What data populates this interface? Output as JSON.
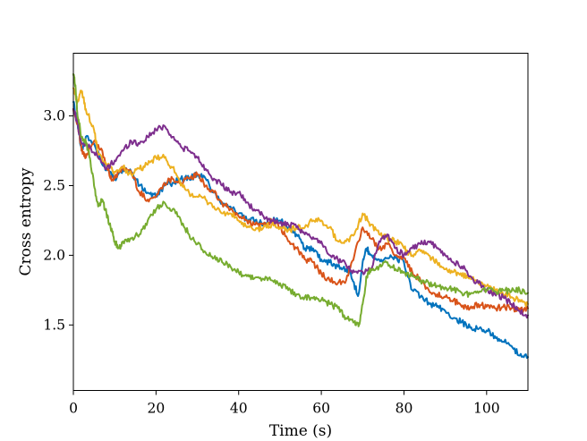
{
  "chart_data": {
    "type": "line",
    "title": "",
    "xlabel": "Time (s)",
    "ylabel": "Cross entropy",
    "xlim": [
      0,
      110
    ],
    "ylim": [
      1.03,
      3.45
    ],
    "xticks": [
      0,
      20,
      40,
      60,
      80,
      100
    ],
    "yticks": [
      1.5,
      2.0,
      2.5,
      3.0
    ],
    "xtick_labels": [
      "0",
      "20",
      "40",
      "60",
      "80",
      "100"
    ],
    "ytick_labels": [
      "1.5",
      "2.0",
      "2.5",
      "3.0"
    ],
    "grid": false,
    "legend": "none",
    "series": [
      {
        "color": "#0072BD",
        "points": [
          [
            0,
            3.1
          ],
          [
            1,
            2.95
          ],
          [
            2,
            2.75
          ],
          [
            3,
            2.85
          ],
          [
            5,
            2.8
          ],
          [
            7,
            2.65
          ],
          [
            9,
            2.6
          ],
          [
            10,
            2.55
          ],
          [
            12,
            2.62
          ],
          [
            14,
            2.6
          ],
          [
            16,
            2.5
          ],
          [
            18,
            2.45
          ],
          [
            20,
            2.42
          ],
          [
            22,
            2.5
          ],
          [
            24,
            2.52
          ],
          [
            26,
            2.55
          ],
          [
            28,
            2.55
          ],
          [
            30,
            2.58
          ],
          [
            32,
            2.55
          ],
          [
            34,
            2.45
          ],
          [
            36,
            2.38
          ],
          [
            38,
            2.35
          ],
          [
            40,
            2.3
          ],
          [
            42,
            2.25
          ],
          [
            44,
            2.25
          ],
          [
            46,
            2.23
          ],
          [
            48,
            2.25
          ],
          [
            50,
            2.25
          ],
          [
            52,
            2.2
          ],
          [
            54,
            2.15
          ],
          [
            56,
            2.05
          ],
          [
            58,
            2.05
          ],
          [
            60,
            1.97
          ],
          [
            62,
            1.95
          ],
          [
            64,
            1.92
          ],
          [
            66,
            1.9
          ],
          [
            67,
            1.88
          ],
          [
            68,
            1.78
          ],
          [
            69,
            1.72
          ],
          [
            70,
            1.95
          ],
          [
            71,
            2.05
          ],
          [
            72,
            2.0
          ],
          [
            74,
            1.97
          ],
          [
            76,
            1.98
          ],
          [
            78,
            1.98
          ],
          [
            80,
            1.95
          ],
          [
            82,
            1.75
          ],
          [
            84,
            1.7
          ],
          [
            86,
            1.66
          ],
          [
            88,
            1.63
          ],
          [
            90,
            1.6
          ],
          [
            92,
            1.55
          ],
          [
            94,
            1.52
          ],
          [
            96,
            1.48
          ],
          [
            98,
            1.47
          ],
          [
            100,
            1.46
          ],
          [
            102,
            1.42
          ],
          [
            104,
            1.38
          ],
          [
            106,
            1.35
          ],
          [
            108,
            1.28
          ],
          [
            110,
            1.27
          ]
        ]
      },
      {
        "color": "#D95319",
        "points": [
          [
            0,
            3.05
          ],
          [
            1,
            2.95
          ],
          [
            2,
            2.75
          ],
          [
            3,
            2.7
          ],
          [
            5,
            2.82
          ],
          [
            7,
            2.75
          ],
          [
            9,
            2.55
          ],
          [
            10,
            2.55
          ],
          [
            12,
            2.63
          ],
          [
            14,
            2.6
          ],
          [
            16,
            2.45
          ],
          [
            18,
            2.4
          ],
          [
            20,
            2.42
          ],
          [
            22,
            2.52
          ],
          [
            24,
            2.55
          ],
          [
            26,
            2.52
          ],
          [
            28,
            2.55
          ],
          [
            30,
            2.58
          ],
          [
            32,
            2.5
          ],
          [
            34,
            2.45
          ],
          [
            36,
            2.37
          ],
          [
            38,
            2.33
          ],
          [
            40,
            2.28
          ],
          [
            42,
            2.25
          ],
          [
            44,
            2.22
          ],
          [
            46,
            2.22
          ],
          [
            48,
            2.25
          ],
          [
            50,
            2.2
          ],
          [
            52,
            2.1
          ],
          [
            54,
            2.05
          ],
          [
            56,
            1.97
          ],
          [
            58,
            1.95
          ],
          [
            60,
            1.87
          ],
          [
            62,
            1.82
          ],
          [
            64,
            1.8
          ],
          [
            66,
            1.82
          ],
          [
            68,
            2.0
          ],
          [
            70,
            2.2
          ],
          [
            72,
            2.12
          ],
          [
            74,
            2.05
          ],
          [
            76,
            2.08
          ],
          [
            78,
            2.0
          ],
          [
            80,
            1.98
          ],
          [
            82,
            1.88
          ],
          [
            84,
            1.82
          ],
          [
            86,
            1.75
          ],
          [
            88,
            1.72
          ],
          [
            90,
            1.7
          ],
          [
            92,
            1.68
          ],
          [
            94,
            1.63
          ],
          [
            96,
            1.62
          ],
          [
            98,
            1.65
          ],
          [
            100,
            1.63
          ],
          [
            102,
            1.62
          ],
          [
            104,
            1.63
          ],
          [
            106,
            1.62
          ],
          [
            108,
            1.6
          ],
          [
            110,
            1.62
          ]
        ]
      },
      {
        "color": "#EDB120",
        "points": [
          [
            0,
            3.2
          ],
          [
            1,
            3.1
          ],
          [
            2,
            3.18
          ],
          [
            3,
            3.05
          ],
          [
            5,
            2.9
          ],
          [
            6,
            2.72
          ],
          [
            8,
            2.65
          ],
          [
            10,
            2.6
          ],
          [
            12,
            2.63
          ],
          [
            14,
            2.58
          ],
          [
            16,
            2.62
          ],
          [
            18,
            2.65
          ],
          [
            20,
            2.7
          ],
          [
            22,
            2.7
          ],
          [
            24,
            2.63
          ],
          [
            26,
            2.5
          ],
          [
            28,
            2.45
          ],
          [
            30,
            2.42
          ],
          [
            32,
            2.4
          ],
          [
            34,
            2.35
          ],
          [
            36,
            2.3
          ],
          [
            38,
            2.3
          ],
          [
            40,
            2.25
          ],
          [
            42,
            2.2
          ],
          [
            44,
            2.18
          ],
          [
            46,
            2.2
          ],
          [
            48,
            2.22
          ],
          [
            50,
            2.2
          ],
          [
            52,
            2.18
          ],
          [
            54,
            2.2
          ],
          [
            56,
            2.2
          ],
          [
            58,
            2.25
          ],
          [
            60,
            2.25
          ],
          [
            62,
            2.2
          ],
          [
            64,
            2.1
          ],
          [
            66,
            2.1
          ],
          [
            68,
            2.15
          ],
          [
            70,
            2.3
          ],
          [
            72,
            2.22
          ],
          [
            74,
            2.15
          ],
          [
            76,
            2.12
          ],
          [
            78,
            2.1
          ],
          [
            80,
            2.05
          ],
          [
            82,
            2.0
          ],
          [
            84,
            2.03
          ],
          [
            86,
            2.0
          ],
          [
            88,
            1.95
          ],
          [
            90,
            1.9
          ],
          [
            92,
            1.88
          ],
          [
            94,
            1.85
          ],
          [
            96,
            1.85
          ],
          [
            98,
            1.8
          ],
          [
            100,
            1.78
          ],
          [
            102,
            1.75
          ],
          [
            104,
            1.72
          ],
          [
            106,
            1.7
          ],
          [
            108,
            1.68
          ],
          [
            110,
            1.65
          ]
        ]
      },
      {
        "color": "#7E2F8E",
        "points": [
          [
            0,
            3.05
          ],
          [
            1,
            2.95
          ],
          [
            2,
            2.8
          ],
          [
            4,
            2.78
          ],
          [
            6,
            2.7
          ],
          [
            8,
            2.62
          ],
          [
            10,
            2.68
          ],
          [
            12,
            2.75
          ],
          [
            14,
            2.82
          ],
          [
            16,
            2.8
          ],
          [
            18,
            2.85
          ],
          [
            20,
            2.9
          ],
          [
            22,
            2.93
          ],
          [
            24,
            2.85
          ],
          [
            26,
            2.78
          ],
          [
            28,
            2.75
          ],
          [
            30,
            2.7
          ],
          [
            32,
            2.62
          ],
          [
            34,
            2.55
          ],
          [
            36,
            2.5
          ],
          [
            38,
            2.45
          ],
          [
            40,
            2.45
          ],
          [
            42,
            2.38
          ],
          [
            44,
            2.32
          ],
          [
            46,
            2.28
          ],
          [
            48,
            2.25
          ],
          [
            50,
            2.23
          ],
          [
            52,
            2.22
          ],
          [
            54,
            2.2
          ],
          [
            56,
            2.15
          ],
          [
            58,
            2.13
          ],
          [
            60,
            2.1
          ],
          [
            62,
            2.0
          ],
          [
            64,
            1.97
          ],
          [
            66,
            1.93
          ],
          [
            68,
            1.88
          ],
          [
            70,
            1.88
          ],
          [
            72,
            1.9
          ],
          [
            74,
            2.1
          ],
          [
            76,
            2.15
          ],
          [
            78,
            2.05
          ],
          [
            80,
            2.0
          ],
          [
            82,
            2.05
          ],
          [
            84,
            2.08
          ],
          [
            86,
            2.1
          ],
          [
            88,
            2.05
          ],
          [
            90,
            2.0
          ],
          [
            92,
            1.95
          ],
          [
            94,
            1.92
          ],
          [
            96,
            1.85
          ],
          [
            98,
            1.8
          ],
          [
            100,
            1.75
          ],
          [
            102,
            1.72
          ],
          [
            104,
            1.7
          ],
          [
            106,
            1.65
          ],
          [
            108,
            1.6
          ],
          [
            110,
            1.57
          ]
        ]
      },
      {
        "color": "#77AC30",
        "points": [
          [
            0,
            3.3
          ],
          [
            0.5,
            3.22
          ],
          [
            1,
            3.0
          ],
          [
            2,
            2.85
          ],
          [
            3,
            2.82
          ],
          [
            4,
            2.7
          ],
          [
            5,
            2.5
          ],
          [
            6,
            2.35
          ],
          [
            7,
            2.4
          ],
          [
            8,
            2.3
          ],
          [
            9,
            2.2
          ],
          [
            10,
            2.1
          ],
          [
            11,
            2.05
          ],
          [
            12,
            2.1
          ],
          [
            14,
            2.12
          ],
          [
            16,
            2.15
          ],
          [
            18,
            2.25
          ],
          [
            20,
            2.33
          ],
          [
            22,
            2.38
          ],
          [
            24,
            2.33
          ],
          [
            26,
            2.25
          ],
          [
            28,
            2.15
          ],
          [
            30,
            2.08
          ],
          [
            32,
            2.02
          ],
          [
            34,
            1.98
          ],
          [
            36,
            1.95
          ],
          [
            38,
            1.92
          ],
          [
            40,
            1.88
          ],
          [
            42,
            1.85
          ],
          [
            44,
            1.84
          ],
          [
            46,
            1.83
          ],
          [
            48,
            1.82
          ],
          [
            50,
            1.8
          ],
          [
            52,
            1.75
          ],
          [
            54,
            1.72
          ],
          [
            56,
            1.7
          ],
          [
            58,
            1.69
          ],
          [
            60,
            1.68
          ],
          [
            62,
            1.65
          ],
          [
            64,
            1.62
          ],
          [
            66,
            1.55
          ],
          [
            68,
            1.52
          ],
          [
            69,
            1.49
          ],
          [
            70,
            1.65
          ],
          [
            71,
            1.85
          ],
          [
            72,
            1.9
          ],
          [
            74,
            1.92
          ],
          [
            76,
            1.95
          ],
          [
            78,
            1.9
          ],
          [
            80,
            1.88
          ],
          [
            82,
            1.85
          ],
          [
            84,
            1.82
          ],
          [
            86,
            1.8
          ],
          [
            88,
            1.78
          ],
          [
            90,
            1.77
          ],
          [
            92,
            1.75
          ],
          [
            94,
            1.73
          ],
          [
            96,
            1.72
          ],
          [
            98,
            1.73
          ],
          [
            100,
            1.75
          ],
          [
            102,
            1.74
          ],
          [
            104,
            1.75
          ],
          [
            106,
            1.74
          ],
          [
            108,
            1.75
          ],
          [
            110,
            1.73
          ]
        ]
      }
    ]
  }
}
